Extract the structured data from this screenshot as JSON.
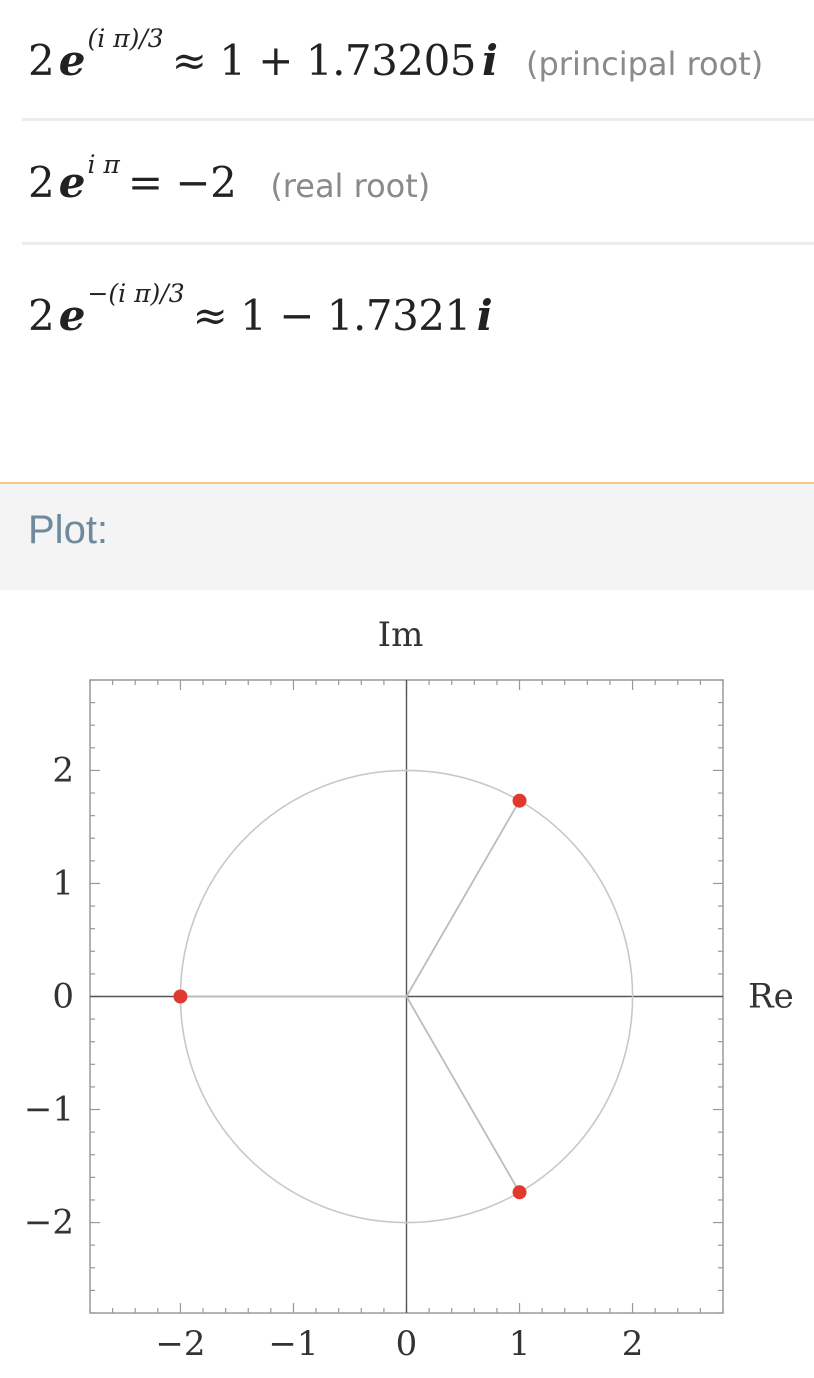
{
  "roots": [
    {
      "coef": "2",
      "exponent": "(i π)/3",
      "relation": "≈ 1 + 1.73205",
      "imag": "i",
      "note": "(principal root)"
    },
    {
      "coef": "2",
      "exponent": "i π",
      "relation": "= −2",
      "imag": "",
      "note": "(real root)"
    },
    {
      "coef": "2",
      "exponent": "−(i π)/3",
      "relation": "≈ 1 − 1.7321",
      "imag": "i",
      "note": ""
    }
  ],
  "plot": {
    "title": "Plot:"
  },
  "chart_data": {
    "type": "scatter",
    "title": "",
    "xlabel": "Re",
    "ylabel": "Im",
    "xlim": [
      -2.8,
      2.8
    ],
    "ylim": [
      -2.8,
      2.8
    ],
    "xticks": [
      "−2",
      "−1",
      "0",
      "1",
      "2"
    ],
    "yticks": [
      "2",
      "1",
      "0",
      "−1",
      "−2"
    ],
    "xtick_values": [
      -2,
      -1,
      0,
      1,
      2
    ],
    "ytick_values": [
      2,
      1,
      0,
      -1,
      -2
    ],
    "circle_radius": 2,
    "points": [
      {
        "x": 1,
        "y": 1.73205
      },
      {
        "x": -2,
        "y": 0
      },
      {
        "x": 1,
        "y": -1.73205
      }
    ],
    "point_color": "#e03a2f",
    "grid": false
  }
}
